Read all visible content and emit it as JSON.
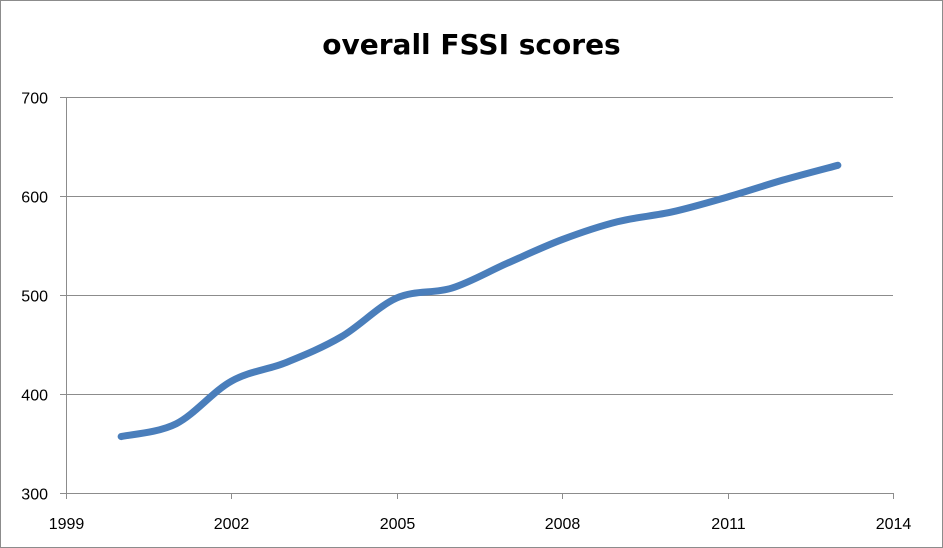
{
  "chart_data": {
    "type": "line",
    "title": "overall FSSI scores",
    "xlabel": "",
    "ylabel": "",
    "xlim": [
      1999,
      2014
    ],
    "ylim": [
      300,
      700
    ],
    "xticks": [
      1999,
      2002,
      2005,
      2008,
      2011,
      2014
    ],
    "yticks": [
      300,
      400,
      500,
      600,
      700
    ],
    "grid": true,
    "legend": "none",
    "series": [
      {
        "color": "#4a7ebb",
        "x": [
          2000,
          2001,
          2002,
          2003,
          2004,
          2005,
          2006,
          2007,
          2008,
          2009,
          2010,
          2011,
          2012,
          2013
        ],
        "y": [
          357,
          370,
          413,
          432,
          458,
          497,
          507,
          532,
          556,
          574,
          584,
          599,
          616,
          631
        ]
      }
    ]
  }
}
